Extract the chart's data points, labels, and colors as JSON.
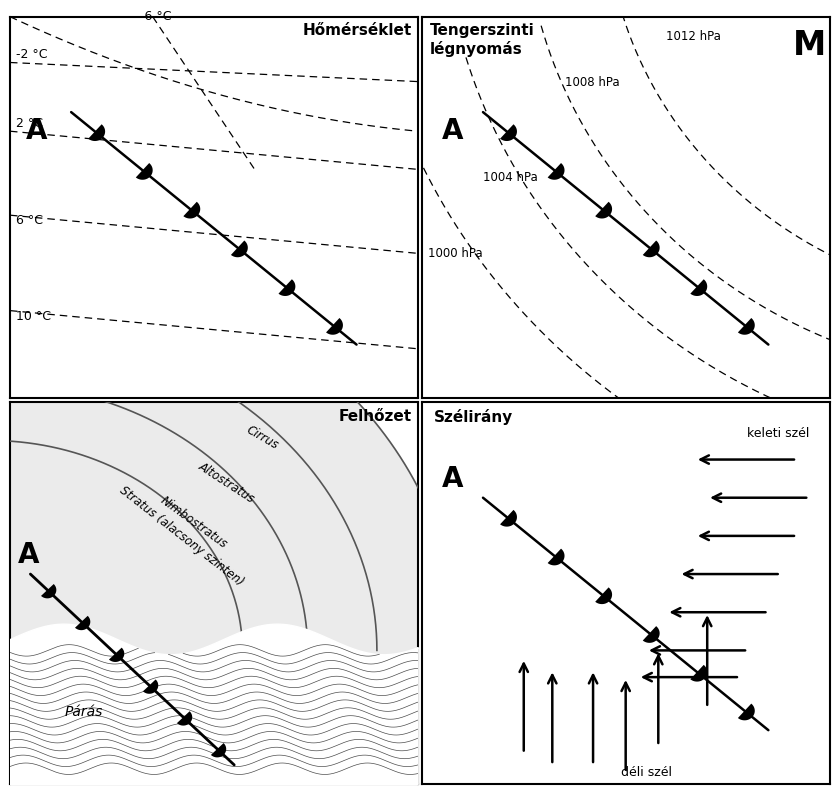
{
  "panel_titles": [
    "Hőmérséklet",
    "Tengerszinti légnyomás",
    "Felhőzet",
    "Szélirány"
  ],
  "temp_labels": [
    "-2 °C",
    "2 °C",
    "6 °C",
    "10 °C",
    "-6 °C"
  ],
  "pressure_labels": [
    "1000 hPa",
    "1004 hPa",
    "1008 hPa",
    "1012 hPa"
  ],
  "cloud_labels": [
    "Cirrus",
    "Altostratus",
    "Nimbostratus",
    "Stratus (alacsony szinten)",
    "Párás"
  ],
  "wind_labels": [
    "keleti szél",
    "déli szél"
  ],
  "A_label": "A",
  "M_label": "M",
  "bg_color": "#ffffff"
}
